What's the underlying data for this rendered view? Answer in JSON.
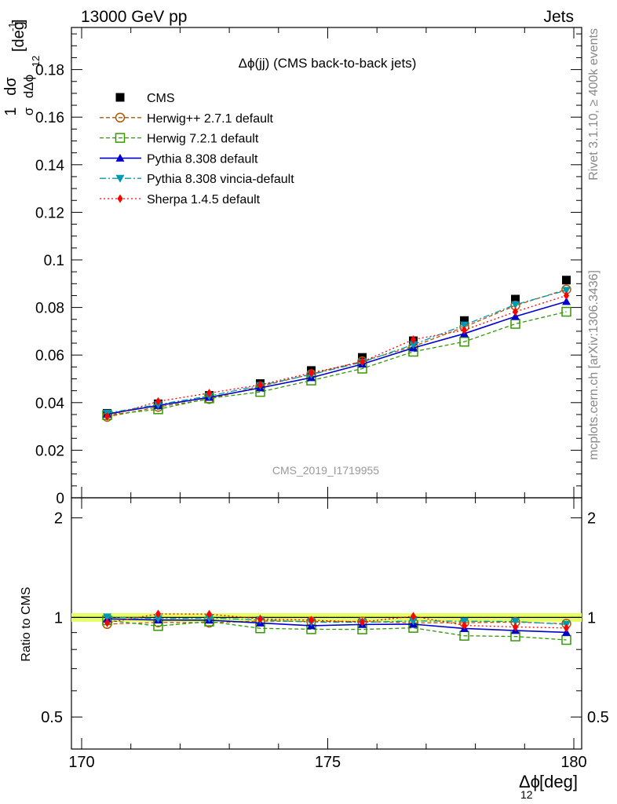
{
  "header": {
    "left": "13000 GeV pp",
    "right": "Jets"
  },
  "side_labels": {
    "upper": "Rivet 3.1.10, ≥ 400k events",
    "lower": "mcplots.cern.ch [arXiv:1306.3436]"
  },
  "colors": {
    "cms": "#000000",
    "herwigpp": "#b35900",
    "herwig7": "#339900",
    "pythia": "#0000cc",
    "vincia": "#0099b3",
    "sherpa": "#ff0000",
    "band": "#e6ff66"
  },
  "chart_data": {
    "type": "line",
    "title": "Δϕ(jj) (CMS back-to-back jets)",
    "watermark": "CMS_2019_I1719955",
    "xlabel": "Δϕ",
    "xlabel_sub": "12",
    "xlabel_unit": "[deg]",
    "ylabel_frac_num": "1",
    "ylabel_frac_num2": "dσ",
    "ylabel_frac_den": "σ",
    "ylabel_frac_den2": "dΔϕ",
    "ylabel_sub": "12",
    "ylabel_unit": "[deg",
    "ylabel_unit_sup": "-1",
    "ylabel_unit_end": "]",
    "ratio_ylabel": "Ratio to CMS",
    "xlim": [
      170,
      180
    ],
    "ylim": [
      0,
      0.198
    ],
    "ratio_ylim": [
      0.4,
      2.3
    ],
    "ratio_log": true,
    "x_ticks": [
      "170",
      "175",
      "180"
    ],
    "x_tick_values": [
      170,
      175,
      180
    ],
    "y_ticks": [
      "0",
      "0.02",
      "0.04",
      "0.06",
      "0.08",
      "0.1",
      "0.12",
      "0.14",
      "0.16",
      "0.18"
    ],
    "y_tick_values": [
      0,
      0.02,
      0.04,
      0.06,
      0.08,
      0.1,
      0.12,
      0.14,
      0.16,
      0.18
    ],
    "ratio_ticks": [
      "0.5",
      "1",
      "2"
    ],
    "ratio_tick_values": [
      0.5,
      1,
      2
    ],
    "ratio_band": [
      0.97,
      1.03
    ],
    "x": [
      170.5,
      171.5,
      172.5,
      173.5,
      174.5,
      175.5,
      176.5,
      177.5,
      178.5,
      179.5
    ],
    "series": [
      {
        "name": "CMS",
        "key": "cms",
        "marker": "square-filled",
        "line": "none",
        "values": [
          0.0355,
          0.0395,
          0.043,
          0.048,
          0.0535,
          0.059,
          0.066,
          0.0745,
          0.0835,
          0.0915
        ]
      },
      {
        "name": "Herwig++ 2.7.1 default",
        "key": "herwigpp",
        "marker": "circle-open",
        "line": "dashed",
        "values": [
          0.034,
          0.0382,
          0.0415,
          0.0468,
          0.052,
          0.0574,
          0.0636,
          0.0718,
          0.0808,
          0.0876
        ]
      },
      {
        "name": "Herwig 7.2.1 default",
        "key": "herwig7",
        "marker": "square-open",
        "line": "dashed",
        "values": [
          0.0348,
          0.0372,
          0.0418,
          0.0445,
          0.0493,
          0.0543,
          0.0614,
          0.0656,
          0.0731,
          0.0782
        ]
      },
      {
        "name": "Pythia 8.308 default",
        "key": "pythia",
        "marker": "triangle-up",
        "line": "solid",
        "values": [
          0.0352,
          0.0388,
          0.0422,
          0.0462,
          0.0505,
          0.0562,
          0.063,
          0.069,
          0.0762,
          0.0825
        ]
      },
      {
        "name": "Pythia 8.308 vincia-default",
        "key": "vincia",
        "marker": "triangle-down",
        "line": "dashdot",
        "values": [
          0.0356,
          0.0392,
          0.0428,
          0.0472,
          0.0518,
          0.057,
          0.0644,
          0.0726,
          0.0812,
          0.0872
        ]
      },
      {
        "name": "Sherpa 1.4.5 default",
        "key": "sherpa",
        "marker": "diamond",
        "line": "dotted",
        "values": [
          0.0342,
          0.0405,
          0.044,
          0.0475,
          0.0525,
          0.0572,
          0.0665,
          0.0705,
          0.0782,
          0.085
        ]
      }
    ],
    "ratios": [
      {
        "key": "herwigpp",
        "values": [
          0.955,
          0.966,
          0.964,
          0.975,
          0.972,
          0.972,
          0.963,
          0.964,
          0.968,
          0.957
        ]
      },
      {
        "key": "herwig7",
        "values": [
          0.98,
          0.942,
          0.972,
          0.927,
          0.921,
          0.92,
          0.93,
          0.88,
          0.876,
          0.855
        ]
      },
      {
        "key": "pythia",
        "values": [
          0.99,
          0.982,
          0.981,
          0.962,
          0.944,
          0.952,
          0.954,
          0.926,
          0.913,
          0.901
        ]
      },
      {
        "key": "vincia",
        "values": [
          1.003,
          0.992,
          0.995,
          0.983,
          0.968,
          0.966,
          0.976,
          0.974,
          0.972,
          0.953
        ]
      },
      {
        "key": "sherpa",
        "values": [
          0.963,
          1.025,
          1.023,
          0.99,
          0.981,
          0.969,
          1.008,
          0.946,
          0.936,
          0.929
        ]
      }
    ]
  }
}
